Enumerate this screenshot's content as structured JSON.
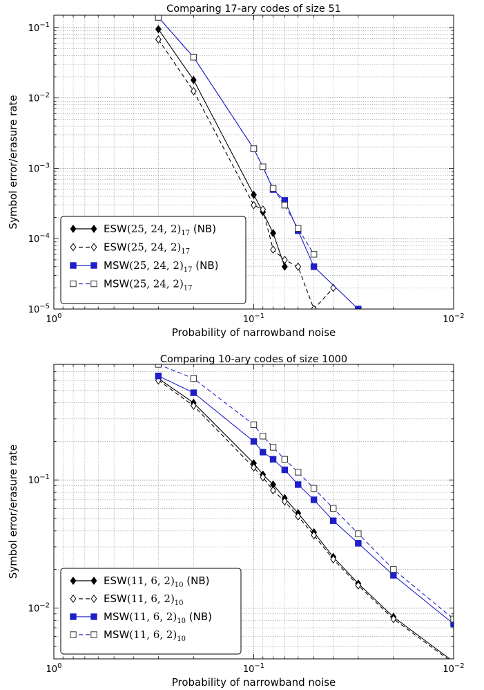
{
  "chart_data": [
    {
      "type": "line",
      "title": "Comparing 17-ary codes of size 51",
      "xlabel": "Probability of narrowband noise",
      "ylabel": "Symbol error/erasure rate",
      "xscale": "log",
      "yscale": "log",
      "x_axis": "reversed",
      "xlim": [
        1,
        0.01
      ],
      "ylim": [
        1e-05,
        0.15
      ],
      "x_ticks": [
        "10^0",
        "10^-1",
        "10^-2"
      ],
      "y_ticks": [
        "10^-1",
        "10^-2",
        "10^-3",
        "10^-4",
        "10^-5"
      ],
      "grid": true,
      "legend_position": "lower-left",
      "series": [
        {
          "name": "ESW(25,24,2)_17 (NB)",
          "color": "#000000",
          "style": "solid",
          "marker": "filled-diamond",
          "x": [
            0.3,
            0.2,
            0.1,
            0.09,
            0.08,
            0.07
          ],
          "y": [
            0.095,
            0.018,
            0.00042,
            0.00024,
            0.00012,
            4e-05
          ]
        },
        {
          "name": "ESW(25,24,2)_17",
          "color": "#000000",
          "style": "dashed",
          "marker": "open-diamond",
          "x": [
            0.3,
            0.2,
            0.1,
            0.09,
            0.08,
            0.07,
            0.06,
            0.05,
            0.04
          ],
          "y": [
            0.068,
            0.0125,
            0.0003,
            0.00026,
            7e-05,
            5e-05,
            4e-05,
            1e-05,
            2e-05
          ]
        },
        {
          "name": "MSW(25,24,2)_17 (NB)",
          "color": "#1f1fc8",
          "style": "solid",
          "marker": "filled-square",
          "x": [
            0.3,
            0.2,
            0.1,
            0.09,
            0.08,
            0.07,
            0.06,
            0.05,
            0.03
          ],
          "y": [
            0.14,
            0.038,
            0.0019,
            0.00105,
            0.0005,
            0.00035,
            0.00013,
            4e-05,
            1e-05
          ]
        },
        {
          "name": "MSW(25,24,2)_17",
          "color": "#1f1fc8",
          "style": "dashed",
          "marker": "open-square",
          "x": [
            0.3,
            0.2,
            0.1,
            0.09,
            0.08,
            0.07,
            0.06,
            0.05
          ],
          "y": [
            0.14,
            0.038,
            0.0019,
            0.00105,
            0.00052,
            0.0003,
            0.00014,
            6e-05
          ]
        }
      ],
      "legend_rows": [
        {
          "base": "ESW",
          "args": "(25, 24, 2)",
          "sub": "17",
          "suffix": " (NB)"
        },
        {
          "base": "ESW",
          "args": "(25, 24, 2)",
          "sub": "17",
          "suffix": ""
        },
        {
          "base": "MSW",
          "args": "(25, 24, 2)",
          "sub": "17",
          "suffix": " (NB)"
        },
        {
          "base": "MSW",
          "args": "(25, 24, 2)",
          "sub": "17",
          "suffix": ""
        }
      ]
    },
    {
      "type": "line",
      "title": "Comparing 10-ary codes of size 1000",
      "xlabel": "Probability of narrowband noise",
      "ylabel": "Symbol error/erasure rate",
      "xscale": "log",
      "yscale": "log",
      "x_axis": "reversed",
      "xlim": [
        1,
        0.01
      ],
      "ylim": [
        0.004,
        0.8
      ],
      "x_ticks": [
        "10^0",
        "10^-1",
        "10^-2"
      ],
      "y_ticks": [
        "10^-1",
        "10^-2"
      ],
      "grid": true,
      "legend_position": "lower-left",
      "series": [
        {
          "name": "ESW(11,6,2)_10 (NB)",
          "color": "#000000",
          "style": "solid",
          "marker": "filled-diamond",
          "x": [
            0.3,
            0.2,
            0.1,
            0.09,
            0.08,
            0.07,
            0.06,
            0.05,
            0.04,
            0.03,
            0.02,
            0.01
          ],
          "y": [
            0.62,
            0.4,
            0.135,
            0.11,
            0.092,
            0.072,
            0.055,
            0.039,
            0.025,
            0.0155,
            0.0085,
            0.0038
          ]
        },
        {
          "name": "ESW(11,6,2)_10",
          "color": "#000000",
          "style": "dashed",
          "marker": "open-diamond",
          "x": [
            0.3,
            0.2,
            0.1,
            0.09,
            0.08,
            0.07,
            0.06,
            0.05,
            0.04,
            0.03,
            0.02,
            0.01
          ],
          "y": [
            0.6,
            0.38,
            0.125,
            0.105,
            0.083,
            0.068,
            0.052,
            0.037,
            0.024,
            0.015,
            0.0082,
            0.0037
          ]
        },
        {
          "name": "MSW(11,6,2)_10 (NB)",
          "color": "#1f1fc8",
          "style": "solid",
          "marker": "filled-square",
          "x": [
            0.3,
            0.2,
            0.1,
            0.09,
            0.08,
            0.07,
            0.06,
            0.05,
            0.04,
            0.03,
            0.02,
            0.01
          ],
          "y": [
            0.65,
            0.48,
            0.2,
            0.165,
            0.145,
            0.12,
            0.092,
            0.07,
            0.048,
            0.032,
            0.018,
            0.0075
          ]
        },
        {
          "name": "MSW(11,6,2)_10",
          "color": "#1f1fc8",
          "style": "dashed",
          "marker": "open-square",
          "x": [
            0.3,
            0.2,
            0.1,
            0.09,
            0.08,
            0.07,
            0.06,
            0.05,
            0.04,
            0.03,
            0.02,
            0.01
          ],
          "y": [
            0.8,
            0.62,
            0.27,
            0.22,
            0.18,
            0.145,
            0.115,
            0.086,
            0.06,
            0.038,
            0.02,
            0.0082
          ]
        }
      ],
      "legend_rows": [
        {
          "base": "ESW",
          "args": "(11, 6, 2)",
          "sub": "10",
          "suffix": " (NB)"
        },
        {
          "base": "ESW",
          "args": "(11, 6, 2)",
          "sub": "10",
          "suffix": ""
        },
        {
          "base": "MSW",
          "args": "(11, 6, 2)",
          "sub": "10",
          "suffix": " (NB)"
        },
        {
          "base": "MSW",
          "args": "(11, 6, 2)",
          "sub": "10",
          "suffix": ""
        }
      ]
    }
  ]
}
